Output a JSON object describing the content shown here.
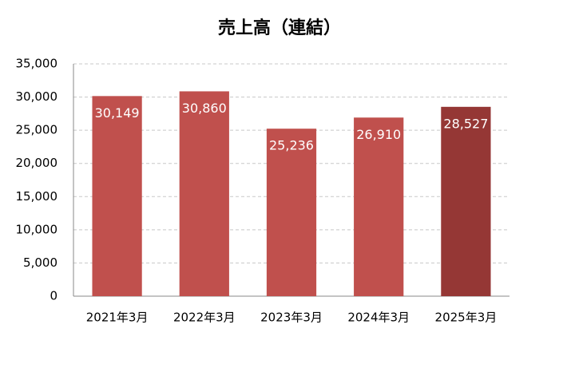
{
  "chart_data": {
    "type": "bar",
    "title": "売上高（連結）",
    "categories": [
      "2021年3月",
      "2022年3月",
      "2023年3月",
      "2024年3月",
      "2025年3月"
    ],
    "values": [
      30149,
      30860,
      25236,
      26910,
      28527
    ],
    "value_labels": [
      "30,149",
      "30,860",
      "25,236",
      "26,910",
      "28,527"
    ],
    "colors": [
      "#c0504d",
      "#c0504d",
      "#c0504d",
      "#c0504d",
      "#953735"
    ],
    "ylim": [
      0,
      35000
    ],
    "yticks": [
      0,
      {
        "value": 5000,
        "label": "5,000"
      },
      {
        "value": 10000,
        "label": "10,000"
      },
      {
        "value": 15000,
        "label": "15,000"
      },
      {
        "value": 20000,
        "label": "20,000"
      },
      {
        "value": 25000,
        "label": "25,000"
      },
      {
        "value": 30000,
        "label": "30,000"
      },
      {
        "value": 35000,
        "label": "35,000"
      }
    ],
    "grid": true
  }
}
